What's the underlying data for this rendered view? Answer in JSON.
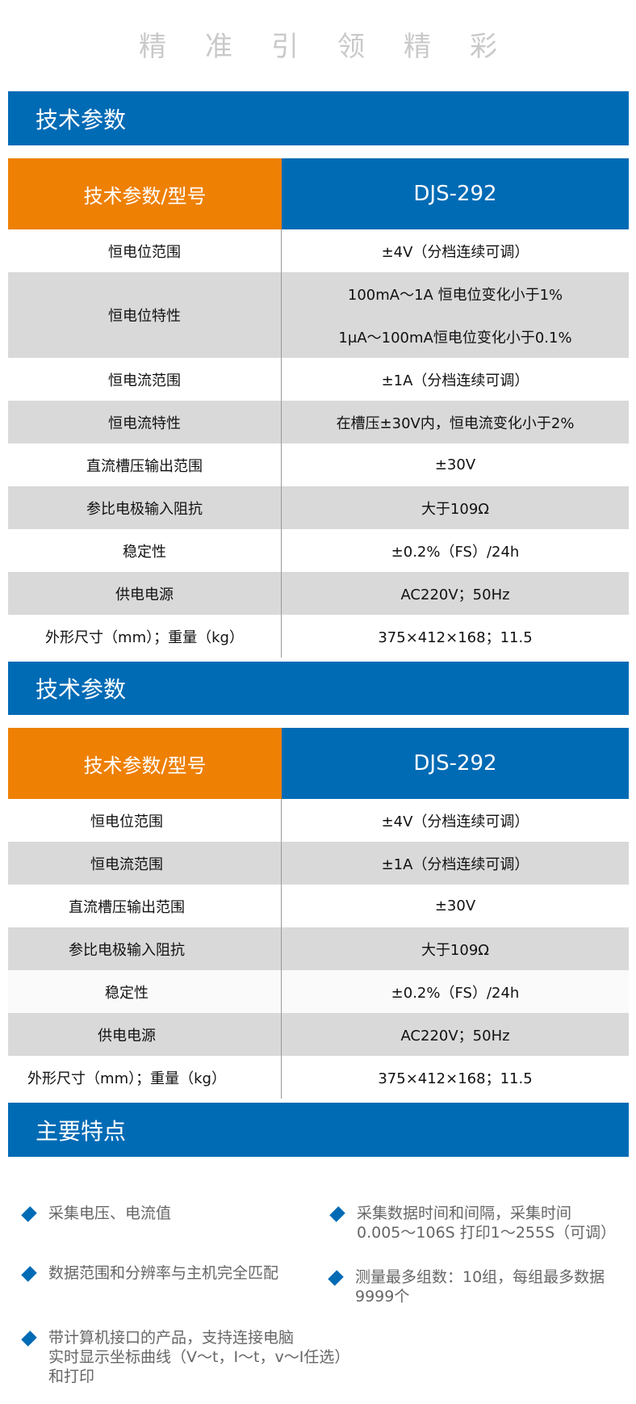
{
  "slogan": "精准引领精彩",
  "sections": {
    "spec1_title": "技术参数",
    "spec2_title": "技术参数",
    "features_title": "主要特点"
  },
  "colors": {
    "brand_blue": "#006bb5",
    "accent_orange": "#ee8004",
    "row_gray": "#d9d9d9"
  },
  "table1": {
    "header": {
      "param": "技术参数/型号",
      "model": "DJS-292"
    },
    "rows": [
      {
        "param": "恒电位范围",
        "values": [
          "±4V（分档连续可调）"
        ]
      },
      {
        "param": "恒电位特性",
        "values": [
          "100mA～1A 恒电位变化小于1%",
          "1μA～100mA恒电位变化小于0.1%"
        ]
      },
      {
        "param": "恒电流范围",
        "values": [
          "±1A（分档连续可调）"
        ]
      },
      {
        "param": "恒电流特性",
        "values": [
          "在槽压±30V内，恒电流变化小于2%"
        ]
      },
      {
        "param": "直流槽压输出范围",
        "values": [
          "±30V"
        ]
      },
      {
        "param": "参比电极输入阻抗",
        "values": [
          "大于109Ω"
        ]
      },
      {
        "param": "稳定性",
        "values": [
          "±0.2%（FS）/24h"
        ]
      },
      {
        "param": "供电电源",
        "values": [
          "AC220V；50Hz"
        ]
      },
      {
        "param": "外形尺寸（mm）；重量（kg）",
        "values": [
          "375×412×168；11.5"
        ]
      }
    ]
  },
  "table2": {
    "header": {
      "param": "技术参数/型号",
      "model": "DJS-292"
    },
    "rows": [
      {
        "param": "恒电位范围",
        "values": [
          "±4V（分档连续可调）"
        ]
      },
      {
        "param": "恒电流范围",
        "values": [
          "±1A（分档连续可调）"
        ]
      },
      {
        "param": "直流槽压输出范围",
        "values": [
          "±30V"
        ]
      },
      {
        "param": "参比电极输入阻抗",
        "values": [
          "大于109Ω"
        ]
      },
      {
        "param": "稳定性",
        "values": [
          "±0.2%（FS）/24h"
        ]
      },
      {
        "param": "供电电源",
        "values": [
          "AC220V；50Hz"
        ]
      },
      {
        "param": "外形尺寸（mm）；重量（kg）",
        "values": [
          "375×412×168；11.5"
        ]
      }
    ]
  },
  "features": [
    "采集电压、电流值",
    "采集数据时间和间隔，采集时间\n0.005～106S  打印1～255S（可调）",
    "数据范围和分辨率与主机完全匹配",
    "测量最多组数：10组，每组最多数据\n9999个",
    "带计算机接口的产品，支持连接电脑\n实时显示坐标曲线（V～t，I～t，v～I任选）\n和打印"
  ]
}
